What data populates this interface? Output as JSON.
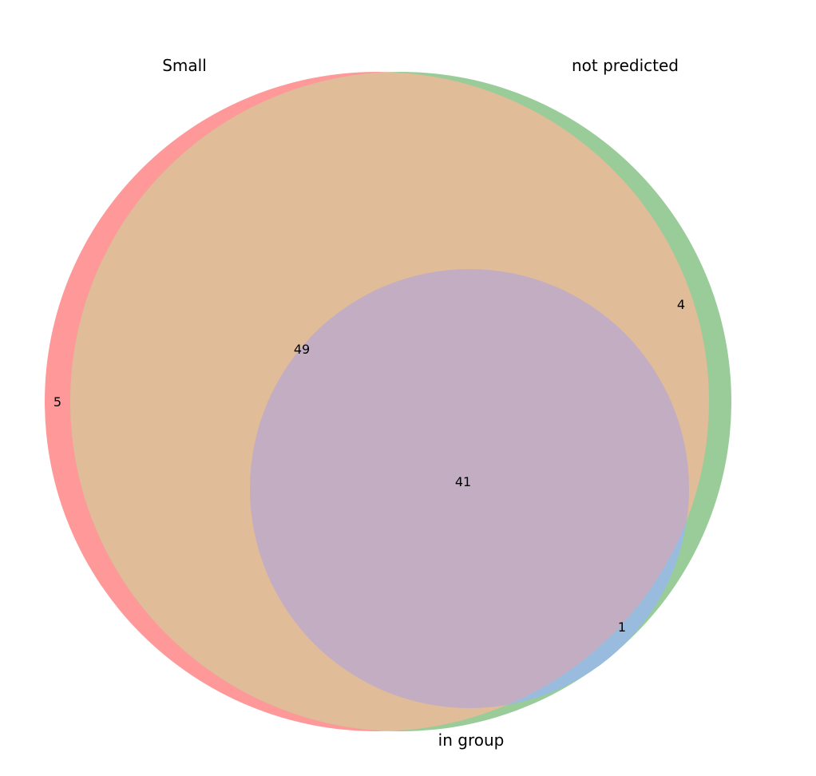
{
  "diagram": {
    "type": "venn3",
    "sets": [
      {
        "name": "Small",
        "color": "#ff9999"
      },
      {
        "name": "not predicted",
        "color": "#99cc99"
      },
      {
        "name": "in group",
        "color": "#99bbdd"
      }
    ],
    "regions": {
      "small_only": "5",
      "not_predicted_only": "4",
      "small_and_not_predicted": "49",
      "all_three": "41",
      "not_predicted_and_in_group": "1"
    },
    "region_colors": {
      "small_and_not_predicted": "#e0bc98",
      "all_three": "#c3adc3"
    }
  }
}
